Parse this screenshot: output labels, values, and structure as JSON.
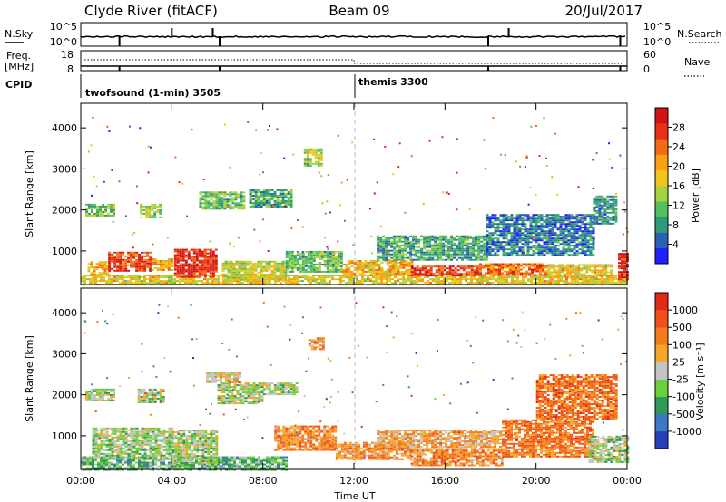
{
  "header": {
    "left": "Clyde River (fitACF)",
    "center": "Beam 09",
    "right": "20/Jul/2017"
  },
  "noise_panel": {
    "left_label": "N.Sky",
    "right_label": "N.Search",
    "left_ticks": [
      "10^5",
      "10^0"
    ],
    "right_ticks": [
      "10^5",
      "10^0"
    ]
  },
  "freq_panel": {
    "left_label_line1": "Freq.",
    "left_label_line2": "[MHz]",
    "right_label": "Nave",
    "left_ticks": [
      "18",
      "8"
    ],
    "right_ticks": [
      "60",
      "0"
    ]
  },
  "cpid": {
    "label": "CPID",
    "modes": [
      {
        "text": "twofsound (1-min) 3505",
        "start_hour": 0
      },
      {
        "text": "themis 3300",
        "start_hour": 12
      }
    ]
  },
  "x_axis": {
    "label": "Time UT",
    "ticks": [
      "00:00",
      "04:00",
      "08:00",
      "12:00",
      "16:00",
      "20:00",
      "00:00"
    ]
  },
  "chart_data": [
    {
      "type": "heatmap",
      "name": "Power",
      "xlabel": "Time UT",
      "ylabel": "Slant Range [km]",
      "xlim": [
        0,
        24
      ],
      "ylim": [
        180,
        4600
      ],
      "y_ticks": [
        1000,
        2000,
        3000,
        4000
      ],
      "colorbar": {
        "label": "Power [dB]",
        "tick_labels": [
          "4",
          "8",
          "12",
          "16",
          "20",
          "24",
          "28"
        ],
        "colors": [
          "#1f1fff",
          "#2a5fb8",
          "#2f9a7a",
          "#54c05a",
          "#a5d23f",
          "#f2c519",
          "#f7a012",
          "#f46a15",
          "#ea2f17",
          "#d11414"
        ]
      },
      "regions": [
        {
          "t": [
            0.0,
            24.0
          ],
          "r": [
            180,
            420
          ],
          "v": 0.55
        },
        {
          "t": [
            0.3,
            1.2
          ],
          "r": [
            400,
            750
          ],
          "v": 0.6
        },
        {
          "t": [
            1.2,
            3.1
          ],
          "r": [
            500,
            980
          ],
          "v": 0.85
        },
        {
          "t": [
            3.1,
            4.0
          ],
          "r": [
            550,
            820
          ],
          "v": 0.6
        },
        {
          "t": [
            4.1,
            5.9
          ],
          "r": [
            350,
            1050
          ],
          "v": 0.9
        },
        {
          "t": [
            6.2,
            9.0
          ],
          "r": [
            300,
            760
          ],
          "v": 0.5
        },
        {
          "t": [
            9.0,
            11.5
          ],
          "r": [
            500,
            1000
          ],
          "v": 0.35
        },
        {
          "t": [
            11.5,
            14.5
          ],
          "r": [
            400,
            780
          ],
          "v": 0.6
        },
        {
          "t": [
            14.5,
            17.5
          ],
          "r": [
            380,
            640
          ],
          "v": 0.85
        },
        {
          "t": [
            17.5,
            20.5
          ],
          "r": [
            400,
            700
          ],
          "v": 0.75
        },
        {
          "t": [
            20.5,
            23.3
          ],
          "r": [
            380,
            680
          ],
          "v": 0.55
        },
        {
          "t": [
            23.6,
            24.0
          ],
          "r": [
            300,
            950
          ],
          "v": 0.9
        },
        {
          "t": [
            13.0,
            17.8
          ],
          "r": [
            780,
            1380
          ],
          "v": 0.3
        },
        {
          "t": [
            17.8,
            22.5
          ],
          "r": [
            900,
            1900
          ],
          "v": 0.2
        },
        {
          "t": [
            22.5,
            23.5
          ],
          "r": [
            1650,
            2350
          ],
          "v": 0.25
        },
        {
          "t": [
            0.2,
            1.4
          ],
          "r": [
            1850,
            2150
          ],
          "v": 0.4
        },
        {
          "t": [
            2.6,
            3.5
          ],
          "r": [
            1800,
            2150
          ],
          "v": 0.45
        },
        {
          "t": [
            5.2,
            7.2
          ],
          "r": [
            2050,
            2450
          ],
          "v": 0.35
        },
        {
          "t": [
            7.4,
            9.2
          ],
          "r": [
            2100,
            2500
          ],
          "v": 0.3
        },
        {
          "t": [
            9.8,
            10.6
          ],
          "r": [
            3100,
            3500
          ],
          "v": 0.45
        }
      ]
    },
    {
      "type": "heatmap",
      "name": "Velocity",
      "xlabel": "Time UT",
      "ylabel": "Slant Range [km]",
      "xlim": [
        0,
        24
      ],
      "ylim": [
        180,
        4600
      ],
      "y_ticks": [
        1000,
        2000,
        3000,
        4000
      ],
      "colorbar": {
        "label": "Velocity [m s⁻¹]",
        "tick_labels": [
          "1000",
          "500",
          "100",
          "25",
          "-25",
          "-100",
          "-500",
          "-1000"
        ],
        "colors": [
          "#2540b8",
          "#3d78c8",
          "#2e9a55",
          "#6ccf3e",
          "#c4c4c4",
          "#f6a72a",
          "#f47a1d",
          "#f0501a",
          "#e22a18"
        ]
      },
      "regions": [
        {
          "t": [
            0.0,
            9.0
          ],
          "r": [
            180,
            500
          ],
          "v": 0.35
        },
        {
          "t": [
            0.5,
            4.0
          ],
          "r": [
            450,
            1200
          ],
          "v": 0.45
        },
        {
          "t": [
            4.0,
            6.0
          ],
          "r": [
            350,
            1150
          ],
          "v": 0.45
        },
        {
          "t": [
            0.2,
            1.5
          ],
          "r": [
            1850,
            2150
          ],
          "v": 0.45
        },
        {
          "t": [
            2.5,
            3.6
          ],
          "r": [
            1800,
            2150
          ],
          "v": 0.45
        },
        {
          "t": [
            6.0,
            8.0
          ],
          "r": [
            1800,
            2300
          ],
          "v": 0.45
        },
        {
          "t": [
            8.0,
            9.5
          ],
          "r": [
            2000,
            2300
          ],
          "v": 0.45
        },
        {
          "t": [
            5.5,
            7.0
          ],
          "r": [
            2300,
            2550
          ],
          "v": 0.58
        },
        {
          "t": [
            8.5,
            11.2
          ],
          "r": [
            650,
            1250
          ],
          "v": 0.7
        },
        {
          "t": [
            11.2,
            14.5
          ],
          "r": [
            450,
            850
          ],
          "v": 0.66
        },
        {
          "t": [
            14.5,
            18.5
          ],
          "r": [
            300,
            700
          ],
          "v": 0.7
        },
        {
          "t": [
            13.0,
            18.5
          ],
          "r": [
            750,
            1150
          ],
          "v": 0.62
        },
        {
          "t": [
            18.5,
            22.5
          ],
          "r": [
            500,
            1400
          ],
          "v": 0.74
        },
        {
          "t": [
            20.0,
            23.5
          ],
          "r": [
            1400,
            2500
          ],
          "v": 0.76
        },
        {
          "t": [
            22.3,
            24.0
          ],
          "r": [
            350,
            1000
          ],
          "v": 0.45
        },
        {
          "t": [
            10.0,
            10.6
          ],
          "r": [
            3100,
            3400
          ],
          "v": 0.68
        }
      ]
    }
  ]
}
